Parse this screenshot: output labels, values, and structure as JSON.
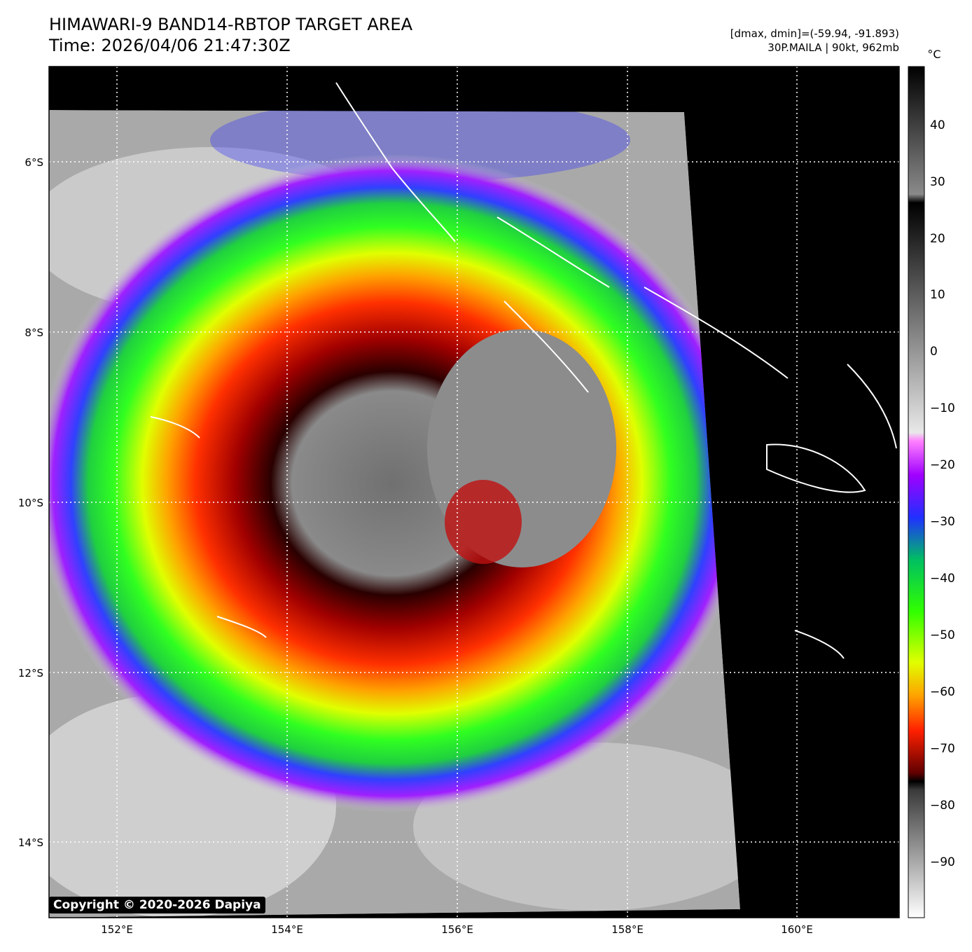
{
  "header": {
    "title_line1": "HIMAWARI-9 BAND14-RBTOP TARGET AREA",
    "title_line2": "Time: 2026/04/06 21:47:30Z",
    "dmax_dmin": "[dmax, dmin]=(-59.94, -91.893)",
    "storm": "30P.MAILA | 90kt, 962mb"
  },
  "map": {
    "lon_ticks": [
      "152°E",
      "154°E",
      "156°E",
      "158°E",
      "160°E"
    ],
    "lat_ticks": [
      "6°S",
      "8°S",
      "10°S",
      "12°S",
      "14°S"
    ]
  },
  "colorbar": {
    "unit": "°C",
    "ticks": [
      "40",
      "30",
      "20",
      "10",
      "0",
      "−10",
      "−20",
      "−30",
      "−40",
      "−50",
      "−60",
      "−70",
      "−80",
      "−90"
    ]
  },
  "copyright": "Copyright © 2020-2026 Dapiya",
  "colors": {
    "background": "#000000",
    "cold_core": "#7a0000",
    "eye_gray": "#8a8a8a",
    "grid": "#ffffff"
  }
}
